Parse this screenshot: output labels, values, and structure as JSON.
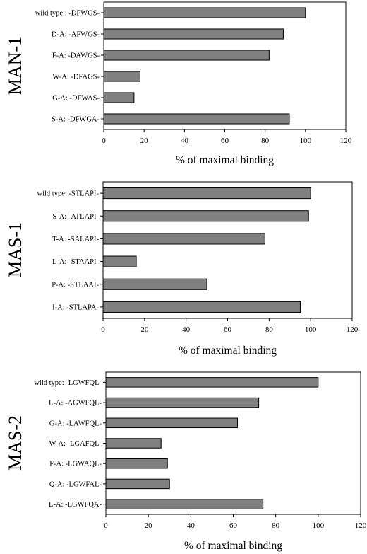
{
  "chart_data": [
    {
      "type": "bar",
      "orientation": "horizontal",
      "panel_label": "MAN-1",
      "xlabel": "% of maximal binding",
      "xlim": [
        0,
        120
      ],
      "xticks": [
        "0",
        "20",
        "40",
        "60",
        "80",
        "100",
        "120"
      ],
      "categories": [
        "wild type : -DFWGS-",
        "D-A: -AFWGS-",
        "F-A: -DAWGS-",
        "W-A: -DFAGS-",
        "G-A: -DFWAS-",
        "S-A: -DFWGA-"
      ],
      "values": [
        100,
        89,
        82,
        18,
        15,
        92
      ],
      "bar_color": "#808080"
    },
    {
      "type": "bar",
      "orientation": "horizontal",
      "panel_label": "MAS-1",
      "xlabel": "% of maximal binding",
      "xlim": [
        0,
        120
      ],
      "xticks": [
        "0",
        "20",
        "40",
        "60",
        "80",
        "100",
        "120"
      ],
      "categories": [
        "wild type: -STLAPI-",
        "S-A: -ATLAPI-",
        "T-A: -SALAPI-",
        "L-A: -STAAPI-",
        "P-A: -STLAAI-",
        "I-A: -STLAPA-"
      ],
      "values": [
        100,
        99,
        78,
        16,
        50,
        95
      ],
      "bar_color": "#808080"
    },
    {
      "type": "bar",
      "orientation": "horizontal",
      "panel_label": "MAS-2",
      "xlabel": "% of maximal binding",
      "xlim": [
        0,
        120
      ],
      "xticks": [
        "0",
        "20",
        "40",
        "60",
        "80",
        "100",
        "120"
      ],
      "categories": [
        "wild type: -LGWFQL-",
        "L-A: -AGWFQL-",
        "G-A: -LAWFQL-",
        "W-A: -LGAFQL-",
        "F-A: -LGWAQL-",
        "Q-A: -LGWFAL-",
        "L-A: -LGWFQA-"
      ],
      "values": [
        100,
        72,
        62,
        26,
        29,
        30,
        74
      ],
      "bar_color": "#808080"
    }
  ]
}
